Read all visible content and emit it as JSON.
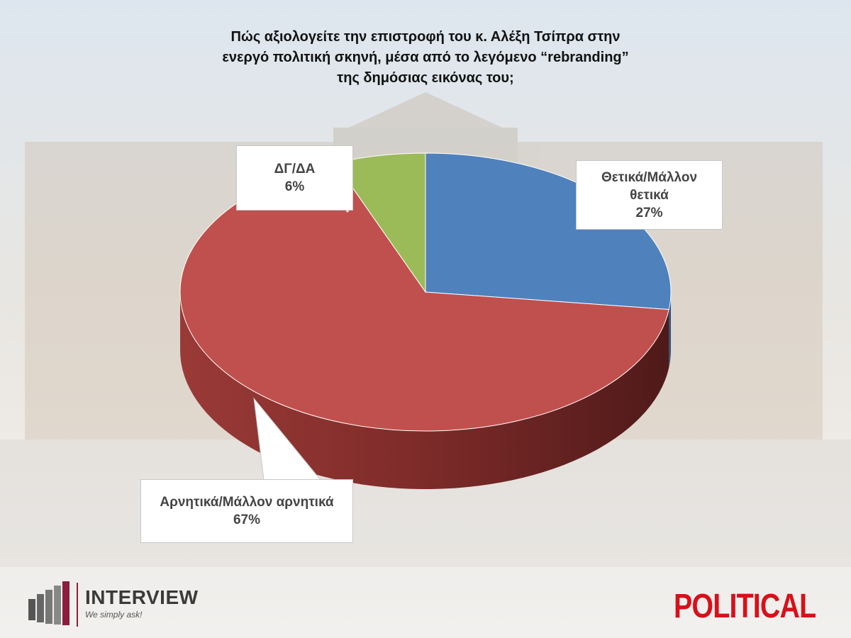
{
  "chart_data": {
    "type": "pie",
    "title": "Πώς αξιολογείτε την επιστροφή του κ. Αλέξη Τσίπρα στην ενεργό πολιτική σκηνή, μέσα από το λεγόμενο “rebranding” της δημόσιας εικόνας του;",
    "categories": [
      "Θετικά/Μάλλον θετικά",
      "Αρνητικά/Μάλλον αρνητικά",
      "ΔΓ/ΔΑ"
    ],
    "values": [
      27,
      67,
      6
    ],
    "value_labels": [
      "27%",
      "67%",
      "6%"
    ],
    "colors": [
      "#4f81bd",
      "#c0504d",
      "#9bbb59"
    ]
  },
  "branding": {
    "left_logo": "INTERVIEW",
    "left_tagline": "We simply ask!",
    "right_logo": "POLITICAL"
  }
}
